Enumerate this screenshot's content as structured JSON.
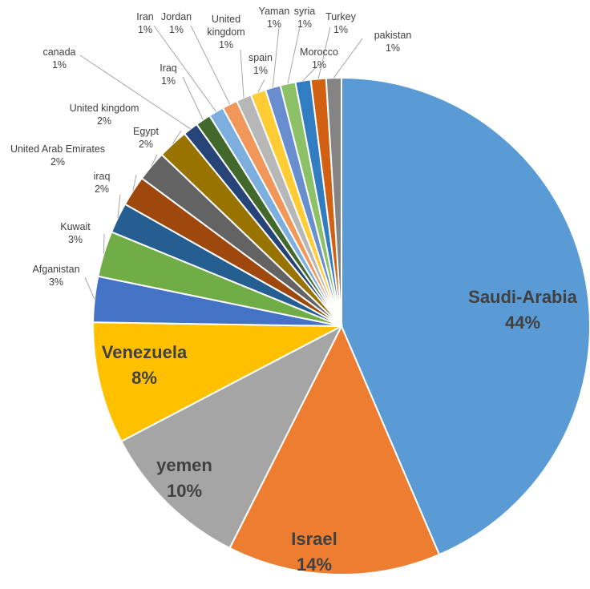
{
  "chart_data": {
    "type": "pie",
    "legend": "none",
    "start_angle": 0,
    "slices": [
      {
        "label": "Saudi-Arabia",
        "value": 44,
        "pct": "44%",
        "color": "#5b9bd5",
        "style": "inside"
      },
      {
        "label": "Israel",
        "value": 14,
        "pct": "14%",
        "color": "#ed7d31",
        "style": "inside"
      },
      {
        "label": "yemen",
        "value": 10,
        "pct": "10%",
        "color": "#a5a5a5",
        "style": "inside"
      },
      {
        "label": "Venezuela",
        "value": 8,
        "pct": "8%",
        "color": "#ffc000",
        "style": "inside"
      },
      {
        "label": "Afganistan",
        "value": 3,
        "pct": "3%",
        "color": "#4472c4",
        "style": "outside"
      },
      {
        "label": "Kuwait",
        "value": 3,
        "pct": "3%",
        "color": "#70ad47",
        "style": "outside"
      },
      {
        "label": "iraq",
        "value": 2,
        "pct": "2%",
        "color": "#255e91",
        "style": "outside"
      },
      {
        "label": "United Arab Emirates",
        "value": 2,
        "pct": "2%",
        "color": "#9e480e",
        "style": "outside"
      },
      {
        "label": "Egypt",
        "value": 2,
        "pct": "2%",
        "color": "#636363",
        "style": "outside"
      },
      {
        "label": "United kingdom",
        "value": 2,
        "pct": "2%",
        "color": "#997300",
        "style": "outside"
      },
      {
        "label": "canada",
        "value": 1,
        "pct": "1%",
        "color": "#264478",
        "style": "outside"
      },
      {
        "label": "Iraq",
        "value": 1,
        "pct": "1%",
        "color": "#43682b",
        "style": "outside"
      },
      {
        "label": "Iran",
        "value": 1,
        "pct": "1%",
        "color": "#7cafdd",
        "style": "outside"
      },
      {
        "label": "Jordan",
        "value": 1,
        "pct": "1%",
        "color": "#f1975a",
        "style": "outside"
      },
      {
        "label": "United kingdom",
        "value": 1,
        "pct": "1%",
        "color": "#b7b7b7",
        "style": "outside"
      },
      {
        "label": "spain",
        "value": 1,
        "pct": "1%",
        "color": "#ffcd33",
        "style": "outside"
      },
      {
        "label": "Yaman",
        "value": 1,
        "pct": "1%",
        "color": "#698ed0",
        "style": "outside"
      },
      {
        "label": "syria",
        "value": 1,
        "pct": "1%",
        "color": "#8cc168",
        "style": "outside"
      },
      {
        "label": "Morocco",
        "value": 1,
        "pct": "1%",
        "color": "#327dc2",
        "style": "outside"
      },
      {
        "label": "Turkey",
        "value": 1,
        "pct": "1%",
        "color": "#d26012",
        "style": "outside"
      },
      {
        "label": "pakistan",
        "value": 1,
        "pct": "1%",
        "color": "#848484",
        "style": "outside"
      }
    ]
  }
}
